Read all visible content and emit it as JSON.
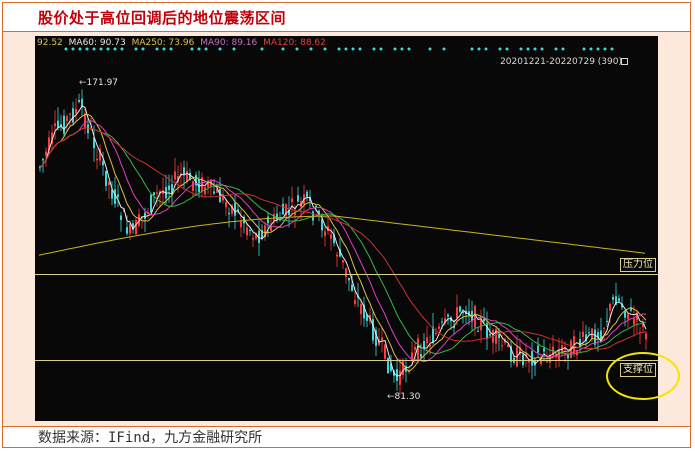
{
  "title": "股价处于高位回调后的地位震荡区间",
  "source": "数据来源：IFind，九方金融研究所",
  "legend": {
    "ma_first": "92.52",
    "ma60": "MA60: 90.73",
    "ma250": "MA250: 73.96",
    "ma90": "MA90: 89.16",
    "ma120": "MA120: 88.62"
  },
  "date_range": "20201221-20220729 (390)",
  "price_high": "171.97",
  "price_low": "81.30",
  "resistance_label": "压力位",
  "support_label": "支撑位",
  "colors": {
    "chart_bg": "#080808",
    "up_candle": "#ff3b3b",
    "down_candle": "#3fd6d6",
    "ma_white": "#e8e8e8",
    "ma_yellow": "#d9c24a",
    "ma_magenta": "#e040c0",
    "ma_green": "#3cb44b",
    "ma_red": "#c83232",
    "ma_250": "#c8b41e",
    "level_line": "#d8cf8e",
    "highlight_ellipse": "#f2e600",
    "title_red": "#c0000a",
    "frame_orange": "#d96a2a"
  }
}
